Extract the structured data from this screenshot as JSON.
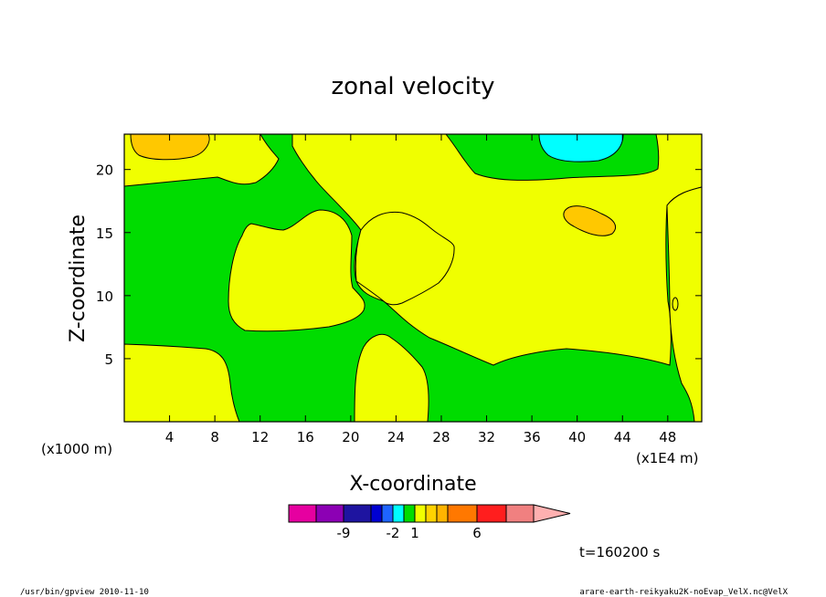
{
  "chart_data": {
    "type": "heatmap",
    "title": "zonal velocity",
    "xlabel": "X-coordinate",
    "ylabel": "Z-coordinate",
    "x_unit_left": "(x1000 m)",
    "x_unit_right": "(x1E4 m)",
    "xlim": [
      0,
      51
    ],
    "ylim": [
      0,
      22.8
    ],
    "xticks": [
      4,
      8,
      12,
      16,
      20,
      24,
      28,
      32,
      36,
      40,
      44,
      48
    ],
    "yticks": [
      5,
      10,
      15,
      20
    ],
    "colorbar": {
      "colors": [
        "#e600a0",
        "#8c00b4",
        "#1e14a0",
        "#0000d2",
        "#1e64ff",
        "#00ffff",
        "#00dc00",
        "#f0ff00",
        "#ffd200",
        "#ffb400",
        "#ff7800",
        "#ff1e1e",
        "#f08080"
      ],
      "tick_labels": [
        "-9",
        "-2",
        "1",
        "6"
      ],
      "extend_color": "#ffb0b0"
    },
    "fields": [
      {
        "name": "green",
        "color": "#00dc00"
      },
      {
        "name": "yellow",
        "color": "#f0ff00"
      },
      {
        "name": "orange",
        "color": "#ffc800"
      },
      {
        "name": "cyan",
        "color": "#00ffff"
      }
    ],
    "time_label": "t=160200 s"
  },
  "footer": {
    "left": "/usr/bin/gpview  2010-11-10",
    "right": "arare-earth-reikyaku2K-noEvap_VelX.nc@VelX"
  }
}
